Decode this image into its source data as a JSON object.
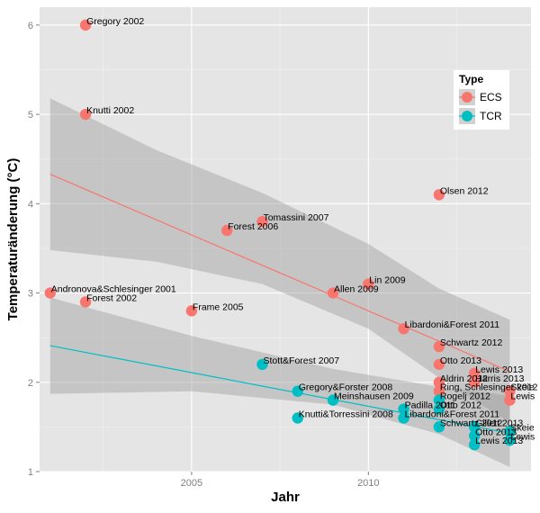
{
  "chart_data": {
    "type": "scatter",
    "title": "",
    "xlabel": "Jahr",
    "ylabel": "Temperaturänderung (°C)",
    "xlim": [
      2000.7,
      2014.6
    ],
    "ylim": [
      1.0,
      6.2
    ],
    "x_ticks": [
      2005,
      2010
    ],
    "y_ticks": [
      1,
      2,
      3,
      4,
      5,
      6
    ],
    "grid": true,
    "legend": {
      "title": "Type",
      "position": "top-right",
      "entries": [
        {
          "key": "ECS",
          "label": "ECS",
          "color": "#F8766D"
        },
        {
          "key": "TCR",
          "label": "TCR",
          "color": "#00BFC4"
        }
      ]
    },
    "series": [
      {
        "name": "ECS",
        "color": "#F8766D",
        "points": [
          {
            "x": 2002,
            "y": 6.0,
            "label": "Gregory 2002"
          },
          {
            "x": 2002,
            "y": 5.0,
            "label": "Knutti 2002"
          },
          {
            "x": 2001,
            "y": 3.0,
            "label": "Andronova&Schlesinger 2001"
          },
          {
            "x": 2002,
            "y": 2.9,
            "label": "Forest 2002"
          },
          {
            "x": 2005,
            "y": 2.8,
            "label": "Frame 2005"
          },
          {
            "x": 2006,
            "y": 3.7,
            "label": "Forest 2006"
          },
          {
            "x": 2007,
            "y": 3.8,
            "label": "Tomassini 2007"
          },
          {
            "x": 2009,
            "y": 3.0,
            "label": "Allen 2009"
          },
          {
            "x": 2010,
            "y": 3.1,
            "label": "Lin 2009"
          },
          {
            "x": 2011,
            "y": 2.6,
            "label": "Libardoni&Forest 2011"
          },
          {
            "x": 2012,
            "y": 4.1,
            "label": "Olsen 2012"
          },
          {
            "x": 2012,
            "y": 2.4,
            "label": "Schwartz 2012"
          },
          {
            "x": 2012,
            "y": 2.2,
            "label": "Otto 2013"
          },
          {
            "x": 2012,
            "y": 2.0,
            "label": "Aldrin 2012"
          },
          {
            "x": 2012,
            "y": 1.9,
            "label": "Ring, Schlesinger 2012"
          },
          {
            "x": 2013,
            "y": 2.1,
            "label": "Lewis 2013"
          },
          {
            "x": 2013,
            "y": 2.0,
            "label": "Harris 2013"
          },
          {
            "x": 2014,
            "y": 1.9,
            "label": "Skeie"
          },
          {
            "x": 2014,
            "y": 1.8,
            "label": "Lewis"
          }
        ],
        "trend": {
          "y_start": 4.33,
          "y_end": 2.12
        },
        "band_upper": [
          [
            2001,
            5.18
          ],
          [
            2004,
            4.6
          ],
          [
            2007,
            4.12
          ],
          [
            2010,
            3.55
          ],
          [
            2012,
            3.05
          ],
          [
            2014,
            2.7
          ]
        ],
        "band_lower": [
          [
            2001,
            3.48
          ],
          [
            2004,
            3.35
          ],
          [
            2007,
            3.1
          ],
          [
            2010,
            2.6
          ],
          [
            2012,
            2.05
          ],
          [
            2014,
            1.55
          ]
        ]
      },
      {
        "name": "TCR",
        "color": "#00BFC4",
        "points": [
          {
            "x": 2007,
            "y": 2.2,
            "label": "Stott&Forest 2007"
          },
          {
            "x": 2008,
            "y": 1.9,
            "label": "Gregory&Forster 2008"
          },
          {
            "x": 2009,
            "y": 1.8,
            "label": "Meinshausen 2009"
          },
          {
            "x": 2008,
            "y": 1.6,
            "label": "Knutti&Torressini 2008"
          },
          {
            "x": 2011,
            "y": 1.7,
            "label": "Padilla 2011"
          },
          {
            "x": 2011,
            "y": 1.6,
            "label": "Libardoni&Forest 2011"
          },
          {
            "x": 2012,
            "y": 1.8,
            "label": "Rogelj 2012"
          },
          {
            "x": 2012,
            "y": 1.7,
            "label": "Otto 2012"
          },
          {
            "x": 2012,
            "y": 1.5,
            "label": "Schwartz 2012"
          },
          {
            "x": 2013,
            "y": 1.5,
            "label": "Gillett 2013"
          },
          {
            "x": 2013,
            "y": 1.4,
            "label": "Otto 2013"
          },
          {
            "x": 2013,
            "y": 1.3,
            "label": "Lewis 2013"
          },
          {
            "x": 2014,
            "y": 1.45,
            "label": "Skeie"
          },
          {
            "x": 2014,
            "y": 1.35,
            "label": "Lewis"
          }
        ],
        "trend": {
          "y_start": 2.41,
          "y_end": 1.43
        },
        "band_upper": [
          [
            2001,
            2.95
          ],
          [
            2005,
            2.52
          ],
          [
            2009,
            2.15
          ],
          [
            2012,
            1.95
          ],
          [
            2014,
            1.85
          ]
        ],
        "band_lower": [
          [
            2001,
            1.87
          ],
          [
            2005,
            1.9
          ],
          [
            2009,
            1.75
          ],
          [
            2012,
            1.42
          ],
          [
            2014,
            1.05
          ]
        ]
      }
    ]
  }
}
